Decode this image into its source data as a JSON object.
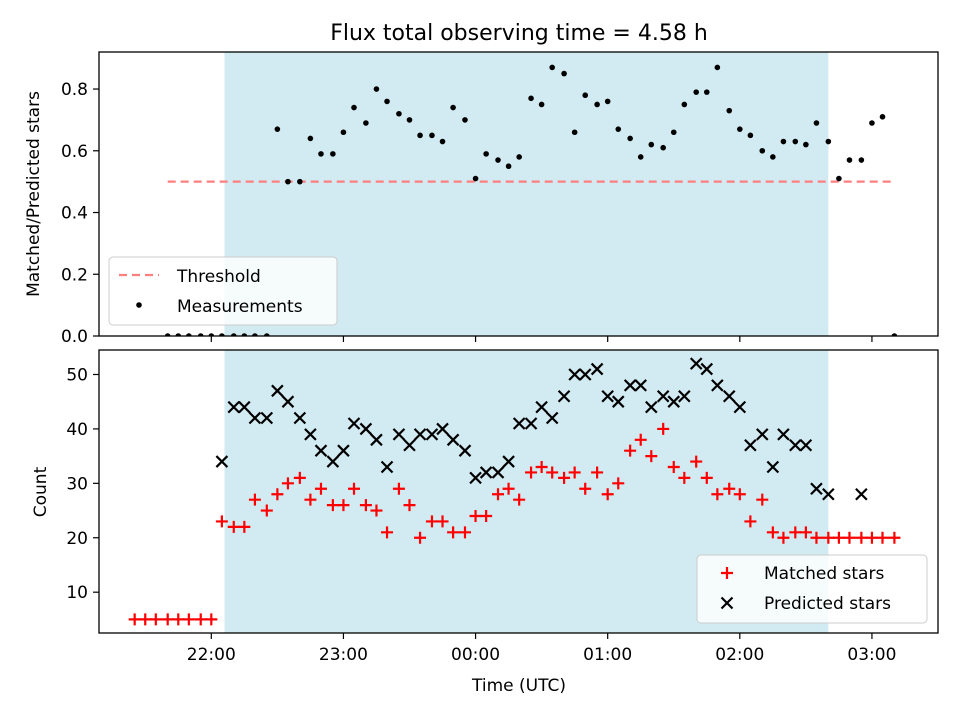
{
  "colors": {
    "span": "#add8e6",
    "threshold": "#ff7f7f",
    "measurement": "#000000",
    "matched": "#ff0000",
    "predicted": "#000000"
  },
  "chart_data": [
    {
      "type": "scatter",
      "title": "Flux total observing time = 4.58 h",
      "xlabel": "",
      "ylabel": "Matched/Predicted stars",
      "x_unit": "hours since 00:00 UTC (negative = previous evening)",
      "xlim": [
        -2.85,
        3.5
      ],
      "ylim": [
        0.0,
        0.92
      ],
      "yticks": [
        "0.0",
        "0.2",
        "0.4",
        "0.6",
        "0.8"
      ],
      "shaded_span": [
        -1.9,
        2.67
      ],
      "threshold": {
        "name": "Threshold",
        "y": 0.5,
        "x_range": [
          -2.33,
          3.17
        ]
      },
      "legend": {
        "location": "lower-left",
        "entries": [
          "Threshold",
          "Measurements"
        ]
      },
      "series": [
        {
          "name": "Measurements",
          "x": [
            -2.33,
            -2.25,
            -2.17,
            -2.08,
            -2.0,
            -1.92,
            -1.83,
            -1.75,
            -1.67,
            -1.58,
            -1.5,
            -1.42,
            -1.33,
            -1.25,
            -1.17,
            -1.08,
            -1.0,
            -0.92,
            -0.83,
            -0.75,
            -0.67,
            -0.58,
            -0.5,
            -0.42,
            -0.33,
            -0.25,
            -0.17,
            -0.08,
            0.0,
            0.08,
            0.17,
            0.25,
            0.33,
            0.42,
            0.5,
            0.58,
            0.67,
            0.75,
            0.83,
            0.92,
            1.0,
            1.08,
            1.17,
            1.25,
            1.33,
            1.42,
            1.5,
            1.58,
            1.67,
            1.75,
            1.83,
            1.92,
            2.0,
            2.08,
            2.17,
            2.25,
            2.33,
            2.42,
            2.5,
            2.58,
            2.67,
            2.75,
            2.83,
            2.92,
            3.0,
            3.08,
            3.17
          ],
          "y": [
            0.0,
            0.0,
            0.0,
            0.0,
            0.0,
            0.0,
            0.0,
            0.0,
            0.0,
            0.0,
            0.67,
            0.5,
            0.5,
            0.64,
            0.59,
            0.59,
            0.66,
            0.74,
            0.69,
            0.8,
            0.76,
            0.72,
            0.7,
            0.65,
            0.65,
            0.63,
            0.74,
            0.7,
            0.51,
            0.59,
            0.57,
            0.55,
            0.58,
            0.77,
            0.75,
            0.87,
            0.85,
            0.66,
            0.78,
            0.75,
            0.76,
            0.67,
            0.64,
            0.58,
            0.62,
            0.61,
            0.66,
            0.75,
            0.79,
            0.79,
            0.87,
            0.73,
            0.67,
            0.65,
            0.6,
            0.58,
            0.63,
            0.63,
            0.62,
            0.69,
            0.63,
            0.51,
            0.57,
            0.57,
            0.69,
            0.71,
            0.0
          ]
        }
      ]
    },
    {
      "type": "scatter",
      "title": "",
      "xlabel": "Time (UTC)",
      "ylabel": "Count",
      "xlim": [
        -2.85,
        3.5
      ],
      "ylim": [
        2.5,
        54.5
      ],
      "xticks": [
        {
          "x": -2.0,
          "label": "22:00"
        },
        {
          "x": -1.0,
          "label": "23:00"
        },
        {
          "x": 0.0,
          "label": "00:00"
        },
        {
          "x": 1.0,
          "label": "01:00"
        },
        {
          "x": 2.0,
          "label": "02:00"
        },
        {
          "x": 3.0,
          "label": "03:00"
        }
      ],
      "yticks": [
        "10",
        "20",
        "30",
        "40",
        "50"
      ],
      "shaded_span": [
        -1.9,
        2.67
      ],
      "legend": {
        "location": "lower-right",
        "entries": [
          "Matched stars",
          "Predicted stars"
        ]
      },
      "series": [
        {
          "name": "Matched stars",
          "marker": "+",
          "x": [
            -2.58,
            -2.5,
            -2.42,
            -2.33,
            -2.25,
            -2.17,
            -2.08,
            -2.0,
            -1.92,
            -1.83,
            -1.75,
            -1.67,
            -1.58,
            -1.5,
            -1.42,
            -1.33,
            -1.25,
            -1.17,
            -1.08,
            -1.0,
            -0.92,
            -0.83,
            -0.75,
            -0.67,
            -0.58,
            -0.5,
            -0.42,
            -0.33,
            -0.25,
            -0.17,
            -0.08,
            0.0,
            0.08,
            0.17,
            0.25,
            0.33,
            0.42,
            0.5,
            0.58,
            0.67,
            0.75,
            0.83,
            0.92,
            1.0,
            1.08,
            1.17,
            1.25,
            1.33,
            1.42,
            1.5,
            1.58,
            1.67,
            1.75,
            1.83,
            1.92,
            2.0,
            2.08,
            2.17,
            2.25,
            2.33,
            2.42,
            2.5,
            2.58,
            2.67,
            2.75,
            2.83,
            2.92,
            3.0,
            3.08,
            3.17
          ],
          "y": [
            5,
            5,
            5,
            5,
            5,
            5,
            5,
            5,
            23,
            22,
            22,
            27,
            25,
            28,
            30,
            31,
            27,
            29,
            26,
            26,
            29,
            26,
            25,
            21,
            29,
            26,
            20,
            23,
            23,
            21,
            21,
            24,
            24,
            28,
            29,
            27,
            32,
            33,
            32,
            31,
            32,
            29,
            32,
            28,
            30,
            36,
            38,
            35,
            40,
            33,
            31,
            34,
            31,
            28,
            29,
            28,
            23,
            27,
            21,
            20,
            21,
            21,
            20,
            20,
            20,
            20,
            20,
            20,
            20,
            20
          ]
        },
        {
          "name": "Predicted stars",
          "marker": "x",
          "x": [
            -1.92,
            -1.83,
            -1.75,
            -1.67,
            -1.58,
            -1.5,
            -1.42,
            -1.33,
            -1.25,
            -1.17,
            -1.08,
            -1.0,
            -0.92,
            -0.83,
            -0.75,
            -0.67,
            -0.58,
            -0.5,
            -0.42,
            -0.33,
            -0.25,
            -0.17,
            -0.08,
            0.0,
            0.08,
            0.17,
            0.25,
            0.33,
            0.42,
            0.5,
            0.58,
            0.67,
            0.75,
            0.83,
            0.92,
            1.0,
            1.08,
            1.17,
            1.25,
            1.33,
            1.42,
            1.5,
            1.58,
            1.67,
            1.75,
            1.83,
            1.92,
            2.0,
            2.08,
            2.17,
            2.25,
            2.33,
            2.42,
            2.5,
            2.58,
            2.67,
            2.92
          ],
          "y": [
            34,
            44,
            44,
            42,
            42,
            47,
            45,
            42,
            39,
            36,
            34,
            36,
            41,
            40,
            38,
            33,
            39,
            37,
            39,
            39,
            40,
            38,
            36,
            31,
            32,
            32,
            34,
            41,
            41,
            44,
            42,
            46,
            50,
            50,
            51,
            46,
            45,
            48,
            48,
            44,
            46,
            45,
            46,
            52,
            51,
            48,
            46,
            44,
            37,
            39,
            33,
            39,
            37,
            37,
            29,
            28,
            28
          ]
        }
      ]
    }
  ]
}
